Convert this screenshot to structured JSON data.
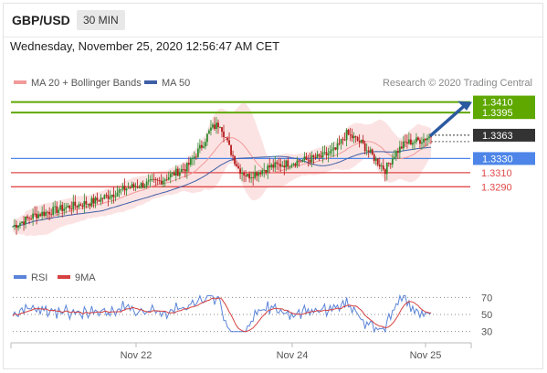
{
  "header": {
    "pair": "GBP/USD",
    "timeframe": "30 MIN"
  },
  "datetime": "Wednesday, November 25, 2020 12:56:47 AM CET",
  "legend": {
    "ma20_label": "MA 20 + Bollinger Bands",
    "ma50_label": "MA 50",
    "source": "Research © 2020 Trading Central"
  },
  "rsi_legend": {
    "rsi_label": "RSI",
    "ma_label": "9MA"
  },
  "colors": {
    "green": "#5fa800",
    "blue_line": "#4d86e8",
    "red_line": "#e04a4a",
    "candle_green": "#2e8b2e",
    "candle_red": "#b51b1b",
    "ma20": "#f29a9a",
    "ma50": "#3e5fa6",
    "rsi": "#5a84d8",
    "rsi_ma": "#d64040",
    "price_box": "#333333",
    "arrow": "#2c5aa0"
  },
  "chart_data": [
    {
      "type": "candlestick",
      "title": "GBP/USD 30 MIN",
      "ylim": [
        1.3205,
        1.3425
      ],
      "price_levels": [
        {
          "value": 1.341,
          "label": "1.3410",
          "kind": "resistance"
        },
        {
          "value": 1.3395,
          "label": "1.3395",
          "kind": "resistance"
        },
        {
          "value": 1.3363,
          "label": "1.3363",
          "kind": "last"
        },
        {
          "value": 1.333,
          "label": "1.3330",
          "kind": "pivot"
        },
        {
          "value": 1.331,
          "label": "1.3310",
          "kind": "support"
        },
        {
          "value": 1.329,
          "label": "1.3290",
          "kind": "support"
        }
      ],
      "x_ticks": [
        "Nov 22",
        "Nov 24",
        "Nov 25"
      ],
      "series": [
        {
          "name": "MA 20 + Bollinger Bands"
        },
        {
          "name": "MA 50"
        }
      ]
    },
    {
      "type": "line",
      "title": "RSI",
      "ylim": [
        20,
        80
      ],
      "y_ticks": [
        70,
        50,
        30
      ],
      "series": [
        {
          "name": "RSI"
        },
        {
          "name": "9MA"
        }
      ]
    }
  ]
}
